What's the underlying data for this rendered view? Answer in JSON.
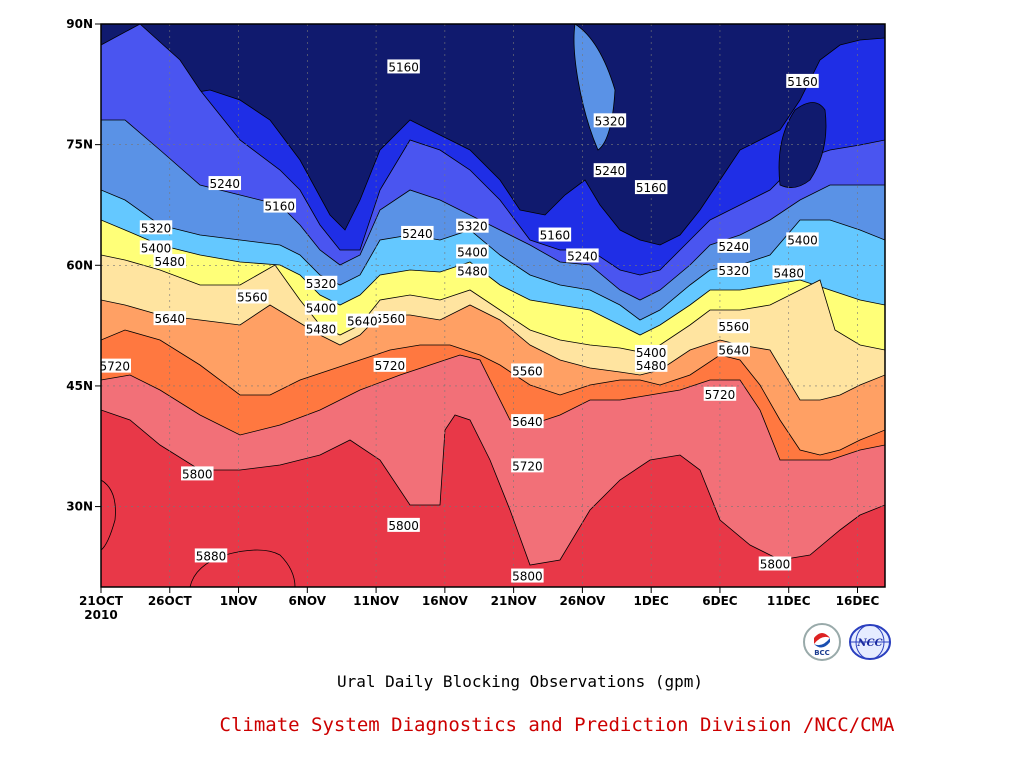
{
  "title": "Ural Daily Blocking Observations (gpm)",
  "credit": "Climate System Diagnostics and Prediction Division /NCC/CMA",
  "credit_color": "#cc0000",
  "logos": [
    {
      "name": "bcc-logo",
      "text": "BCC"
    },
    {
      "name": "ncc-logo",
      "text": "NCC"
    }
  ],
  "chart_data": {
    "type": "heatmap",
    "subtype": "filled-contour",
    "x_ticks": [
      "21OCT",
      "26OCT",
      "1NOV",
      "6NOV",
      "11NOV",
      "16NOV",
      "21NOV",
      "26NOV",
      "1DEC",
      "6DEC",
      "11DEC",
      "16DEC"
    ],
    "x_year_label": "2010",
    "xlim": [
      "2010-10-21",
      "2010-12-17"
    ],
    "y_ticks": [
      "30N",
      "45N",
      "60N",
      "75N",
      "90N"
    ],
    "ylim": [
      20,
      90
    ],
    "grid": true,
    "levels": [
      5160,
      5240,
      5320,
      5400,
      5480,
      5560,
      5640,
      5720,
      5800,
      5880
    ],
    "colors": [
      "#101a6e",
      "#1f2ee6",
      "#4a55f0",
      "#5a92e6",
      "#64c8ff",
      "#ffff78",
      "#ffe4a0",
      "#ffa064",
      "#ff7840",
      "#f27078",
      "#e83848"
    ],
    "contour_labels": [
      {
        "value": "5160",
        "date": "2010-11-12",
        "lat": 84.6
      },
      {
        "value": "5160",
        "date": "2010-11-03",
        "lat": 67.3
      },
      {
        "value": "5160",
        "date": "2010-11-23",
        "lat": 63.7
      },
      {
        "value": "5160",
        "date": "2010-11-30",
        "lat": 69.6
      },
      {
        "value": "5160",
        "date": "2010-12-11",
        "lat": 82.8
      },
      {
        "value": "5240",
        "date": "2010-10-30",
        "lat": 70.1
      },
      {
        "value": "5240",
        "date": "2010-11-13",
        "lat": 63.9
      },
      {
        "value": "5240",
        "date": "2010-11-25",
        "lat": 61.1
      },
      {
        "value": "5240",
        "date": "2010-11-27",
        "lat": 71.7
      },
      {
        "value": "5240",
        "date": "2010-12-06",
        "lat": 62.3
      },
      {
        "value": "5320",
        "date": "2010-10-25",
        "lat": 64.6
      },
      {
        "value": "5320",
        "date": "2010-11-06",
        "lat": 57.7
      },
      {
        "value": "5320",
        "date": "2010-11-17",
        "lat": 64.8
      },
      {
        "value": "5320",
        "date": "2010-11-27",
        "lat": 77.9
      },
      {
        "value": "5320",
        "date": "2010-12-06",
        "lat": 59.3
      },
      {
        "value": "5400",
        "date": "2010-10-25",
        "lat": 62.1
      },
      {
        "value": "5400",
        "date": "2010-11-06",
        "lat": 54.6
      },
      {
        "value": "5400",
        "date": "2010-11-17",
        "lat": 61.6
      },
      {
        "value": "5400",
        "date": "2010-11-30",
        "lat": 49.1
      },
      {
        "value": "5400",
        "date": "2010-12-11",
        "lat": 63.1
      },
      {
        "value": "5480",
        "date": "2010-10-26",
        "lat": 60.4
      },
      {
        "value": "5480",
        "date": "2010-11-06",
        "lat": 52.0
      },
      {
        "value": "5480",
        "date": "2010-11-17",
        "lat": 59.2
      },
      {
        "value": "5480",
        "date": "2010-11-30",
        "lat": 47.5
      },
      {
        "value": "5480",
        "date": "2010-12-10",
        "lat": 59.0
      },
      {
        "value": "5560",
        "date": "2010-11-01",
        "lat": 56.0
      },
      {
        "value": "5560",
        "date": "2010-11-11",
        "lat": 53.3
      },
      {
        "value": "5560",
        "date": "2010-11-21",
        "lat": 46.8
      },
      {
        "value": "5560",
        "date": "2010-12-06",
        "lat": 52.3
      },
      {
        "value": "5640",
        "date": "2010-10-26",
        "lat": 53.3
      },
      {
        "value": "5640",
        "date": "2010-11-09",
        "lat": 53.0
      },
      {
        "value": "5640",
        "date": "2010-11-21",
        "lat": 40.5
      },
      {
        "value": "5640",
        "date": "2010-12-06",
        "lat": 49.4
      },
      {
        "value": "5720",
        "date": "2010-10-22",
        "lat": 47.4
      },
      {
        "value": "5720",
        "date": "2010-11-11",
        "lat": 47.5
      },
      {
        "value": "5720",
        "date": "2010-11-21",
        "lat": 35.0
      },
      {
        "value": "5720",
        "date": "2010-12-05",
        "lat": 43.9
      },
      {
        "value": "5800",
        "date": "2010-10-28",
        "lat": 34.0
      },
      {
        "value": "5800",
        "date": "2010-11-12",
        "lat": 27.6
      },
      {
        "value": "5800",
        "date": "2010-11-21",
        "lat": 21.3
      },
      {
        "value": "5800",
        "date": "2010-12-09",
        "lat": 22.8
      },
      {
        "value": "5880",
        "date": "2010-10-29",
        "lat": 23.8
      }
    ]
  }
}
